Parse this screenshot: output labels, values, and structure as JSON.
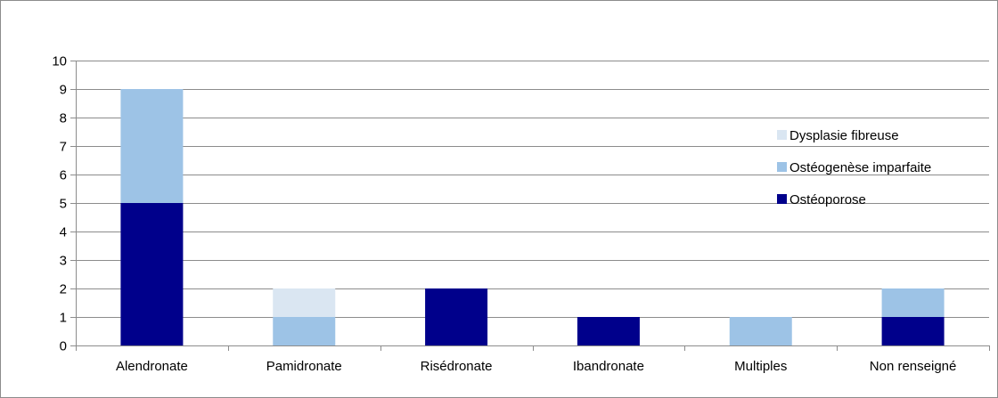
{
  "chart_data": {
    "type": "bar",
    "stacked": true,
    "categories": [
      "Alendronate",
      "Pamidronate",
      "Risédronate",
      "Ibandronate",
      "Multiples",
      "Non renseigné"
    ],
    "series": [
      {
        "name": "Ostéoporose",
        "values": [
          5,
          0,
          2,
          1,
          0,
          1
        ],
        "color": "#00008b"
      },
      {
        "name": "Ostéogenèse imparfaite",
        "values": [
          4,
          1,
          0,
          0,
          1,
          1
        ],
        "color": "#9dc3e6"
      },
      {
        "name": "Dysplasie fibreuse",
        "values": [
          0,
          1,
          0,
          0,
          0,
          0
        ],
        "color": "#dae6f2"
      }
    ],
    "ylim": [
      0,
      10
    ],
    "yticks": [
      "0",
      "1",
      "2",
      "3",
      "4",
      "5",
      "6",
      "7",
      "8",
      "9",
      "10"
    ],
    "grid": true,
    "legend_position": "right"
  }
}
